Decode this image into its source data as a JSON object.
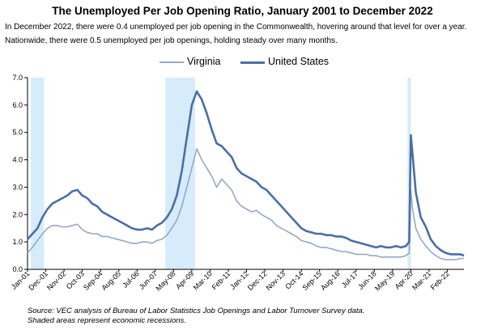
{
  "chart_data": {
    "type": "line",
    "title": "The Unemployed Per Job Opening Ratio, January 2001 to December 2022",
    "subtitle": [
      "In December 2022, there were 0.4 unemployed per job opening in the Commonwealth, hovering around that level for over a year.",
      "Nationwide, there were 0.5 unemployed per job openings, holding steady over many months."
    ],
    "xlabel": "",
    "ylabel": "",
    "ylim": [
      0,
      7
    ],
    "yticks": [
      "0.0",
      "1.0",
      "2.0",
      "3.0",
      "4.0",
      "5.0",
      "6.0",
      "7.0"
    ],
    "xticks": [
      "Jan-01",
      "Dec-01",
      "Nov-02",
      "Oct-03",
      "Sep-04",
      "Aug-05",
      "Jul-06",
      "Jun-07",
      "May-08",
      "Apr-09",
      "Mar-10",
      "Feb-11",
      "Jan-12",
      "Dec-12",
      "Nov-13",
      "Oct-14",
      "Sep-15",
      "Aug-16",
      "Jul-17",
      "Jun-18",
      "May-19",
      "Apr-20",
      "Mar-21",
      "Feb-22"
    ],
    "legend_position": "top",
    "grid": false,
    "recessions": [
      {
        "start": "2001-03",
        "end": "2001-11"
      },
      {
        "start": "2007-12",
        "end": "2009-06"
      },
      {
        "start": "2020-02",
        "end": "2020-04"
      }
    ],
    "series": [
      {
        "name": "Virginia",
        "color": "#95a8c8",
        "points": [
          [
            "2001-01",
            0.6
          ],
          [
            "2001-04",
            0.8
          ],
          [
            "2001-07",
            1.05
          ],
          [
            "2001-10",
            1.3
          ],
          [
            "2002-01",
            1.5
          ],
          [
            "2002-04",
            1.6
          ],
          [
            "2002-07",
            1.6
          ],
          [
            "2002-10",
            1.55
          ],
          [
            "2003-01",
            1.55
          ],
          [
            "2003-04",
            1.6
          ],
          [
            "2003-07",
            1.65
          ],
          [
            "2003-10",
            1.45
          ],
          [
            "2004-01",
            1.35
          ],
          [
            "2004-04",
            1.3
          ],
          [
            "2004-07",
            1.3
          ],
          [
            "2004-10",
            1.2
          ],
          [
            "2005-01",
            1.2
          ],
          [
            "2005-04",
            1.15
          ],
          [
            "2005-07",
            1.1
          ],
          [
            "2005-10",
            1.05
          ],
          [
            "2006-01",
            1.0
          ],
          [
            "2006-04",
            0.95
          ],
          [
            "2006-07",
            0.95
          ],
          [
            "2006-10",
            1.0
          ],
          [
            "2007-01",
            1.0
          ],
          [
            "2007-04",
            0.95
          ],
          [
            "2007-07",
            1.05
          ],
          [
            "2007-10",
            1.1
          ],
          [
            "2008-01",
            1.25
          ],
          [
            "2008-04",
            1.5
          ],
          [
            "2008-07",
            1.8
          ],
          [
            "2008-10",
            2.3
          ],
          [
            "2009-01",
            3.0
          ],
          [
            "2009-04",
            3.7
          ],
          [
            "2009-07",
            4.4
          ],
          [
            "2009-10",
            4.0
          ],
          [
            "2010-01",
            3.7
          ],
          [
            "2010-04",
            3.4
          ],
          [
            "2010-07",
            3.0
          ],
          [
            "2010-10",
            3.3
          ],
          [
            "2011-01",
            3.1
          ],
          [
            "2011-04",
            2.9
          ],
          [
            "2011-07",
            2.5
          ],
          [
            "2011-10",
            2.3
          ],
          [
            "2012-01",
            2.2
          ],
          [
            "2012-04",
            2.1
          ],
          [
            "2012-07",
            2.15
          ],
          [
            "2012-10",
            2.0
          ],
          [
            "2013-01",
            1.9
          ],
          [
            "2013-04",
            1.8
          ],
          [
            "2013-07",
            1.6
          ],
          [
            "2013-10",
            1.5
          ],
          [
            "2014-01",
            1.4
          ],
          [
            "2014-04",
            1.3
          ],
          [
            "2014-07",
            1.2
          ],
          [
            "2014-10",
            1.05
          ],
          [
            "2015-01",
            1.0
          ],
          [
            "2015-04",
            0.95
          ],
          [
            "2015-07",
            0.85
          ],
          [
            "2015-10",
            0.8
          ],
          [
            "2016-01",
            0.8
          ],
          [
            "2016-04",
            0.75
          ],
          [
            "2016-07",
            0.7
          ],
          [
            "2016-10",
            0.65
          ],
          [
            "2017-01",
            0.65
          ],
          [
            "2017-04",
            0.6
          ],
          [
            "2017-07",
            0.55
          ],
          [
            "2017-10",
            0.55
          ],
          [
            "2018-01",
            0.55
          ],
          [
            "2018-04",
            0.5
          ],
          [
            "2018-07",
            0.5
          ],
          [
            "2018-10",
            0.45
          ],
          [
            "2019-01",
            0.45
          ],
          [
            "2019-04",
            0.45
          ],
          [
            "2019-07",
            0.45
          ],
          [
            "2019-10",
            0.45
          ],
          [
            "2020-01",
            0.5
          ],
          [
            "2020-03",
            0.6
          ],
          [
            "2020-04",
            2.9
          ],
          [
            "2020-05",
            2.2
          ],
          [
            "2020-07",
            1.5
          ],
          [
            "2020-10",
            1.1
          ],
          [
            "2021-01",
            0.85
          ],
          [
            "2021-04",
            0.65
          ],
          [
            "2021-07",
            0.5
          ],
          [
            "2021-10",
            0.4
          ],
          [
            "2022-01",
            0.35
          ],
          [
            "2022-04",
            0.35
          ],
          [
            "2022-07",
            0.35
          ],
          [
            "2022-10",
            0.4
          ],
          [
            "2022-12",
            0.4
          ]
        ]
      },
      {
        "name": "United States",
        "color": "#4a6fa5",
        "points": [
          [
            "2001-01",
            1.1
          ],
          [
            "2001-04",
            1.3
          ],
          [
            "2001-07",
            1.5
          ],
          [
            "2001-10",
            1.9
          ],
          [
            "2002-01",
            2.2
          ],
          [
            "2002-04",
            2.4
          ],
          [
            "2002-07",
            2.5
          ],
          [
            "2002-10",
            2.6
          ],
          [
            "2003-01",
            2.7
          ],
          [
            "2003-04",
            2.85
          ],
          [
            "2003-07",
            2.9
          ],
          [
            "2003-10",
            2.7
          ],
          [
            "2004-01",
            2.6
          ],
          [
            "2004-04",
            2.4
          ],
          [
            "2004-07",
            2.3
          ],
          [
            "2004-10",
            2.1
          ],
          [
            "2005-01",
            2.0
          ],
          [
            "2005-04",
            1.9
          ],
          [
            "2005-07",
            1.8
          ],
          [
            "2005-10",
            1.7
          ],
          [
            "2006-01",
            1.6
          ],
          [
            "2006-04",
            1.5
          ],
          [
            "2006-07",
            1.45
          ],
          [
            "2006-10",
            1.45
          ],
          [
            "2007-01",
            1.5
          ],
          [
            "2007-04",
            1.45
          ],
          [
            "2007-07",
            1.6
          ],
          [
            "2007-10",
            1.7
          ],
          [
            "2008-01",
            1.9
          ],
          [
            "2008-04",
            2.2
          ],
          [
            "2008-07",
            2.7
          ],
          [
            "2008-10",
            3.6
          ],
          [
            "2009-01",
            4.8
          ],
          [
            "2009-04",
            6.0
          ],
          [
            "2009-07",
            6.5
          ],
          [
            "2009-10",
            6.2
          ],
          [
            "2010-01",
            5.7
          ],
          [
            "2010-04",
            5.1
          ],
          [
            "2010-07",
            4.6
          ],
          [
            "2010-10",
            4.5
          ],
          [
            "2011-01",
            4.3
          ],
          [
            "2011-04",
            4.1
          ],
          [
            "2011-07",
            3.7
          ],
          [
            "2011-10",
            3.5
          ],
          [
            "2012-01",
            3.4
          ],
          [
            "2012-04",
            3.3
          ],
          [
            "2012-07",
            3.2
          ],
          [
            "2012-10",
            3.0
          ],
          [
            "2013-01",
            2.9
          ],
          [
            "2013-04",
            2.7
          ],
          [
            "2013-07",
            2.5
          ],
          [
            "2013-10",
            2.3
          ],
          [
            "2014-01",
            2.1
          ],
          [
            "2014-04",
            1.9
          ],
          [
            "2014-07",
            1.7
          ],
          [
            "2014-10",
            1.5
          ],
          [
            "2015-01",
            1.4
          ],
          [
            "2015-04",
            1.35
          ],
          [
            "2015-07",
            1.3
          ],
          [
            "2015-10",
            1.3
          ],
          [
            "2016-01",
            1.25
          ],
          [
            "2016-04",
            1.25
          ],
          [
            "2016-07",
            1.2
          ],
          [
            "2016-10",
            1.2
          ],
          [
            "2017-01",
            1.15
          ],
          [
            "2017-04",
            1.05
          ],
          [
            "2017-07",
            1.0
          ],
          [
            "2017-10",
            0.95
          ],
          [
            "2018-01",
            0.9
          ],
          [
            "2018-04",
            0.85
          ],
          [
            "2018-07",
            0.8
          ],
          [
            "2018-10",
            0.85
          ],
          [
            "2019-01",
            0.8
          ],
          [
            "2019-04",
            0.8
          ],
          [
            "2019-07",
            0.85
          ],
          [
            "2019-10",
            0.8
          ],
          [
            "2020-01",
            0.85
          ],
          [
            "2020-03",
            1.0
          ],
          [
            "2020-04",
            4.9
          ],
          [
            "2020-05",
            4.2
          ],
          [
            "2020-07",
            2.8
          ],
          [
            "2020-10",
            1.9
          ],
          [
            "2021-01",
            1.55
          ],
          [
            "2021-04",
            1.1
          ],
          [
            "2021-07",
            0.85
          ],
          [
            "2021-10",
            0.7
          ],
          [
            "2022-01",
            0.6
          ],
          [
            "2022-04",
            0.55
          ],
          [
            "2022-07",
            0.55
          ],
          [
            "2022-10",
            0.55
          ],
          [
            "2022-12",
            0.5
          ]
        ]
      }
    ],
    "source": [
      "Source: VEC analysis of Bureau of Labor Statistics Job Openings and Labor Turnover Survey data.",
      "Shaded areas represent economic recessions."
    ]
  }
}
